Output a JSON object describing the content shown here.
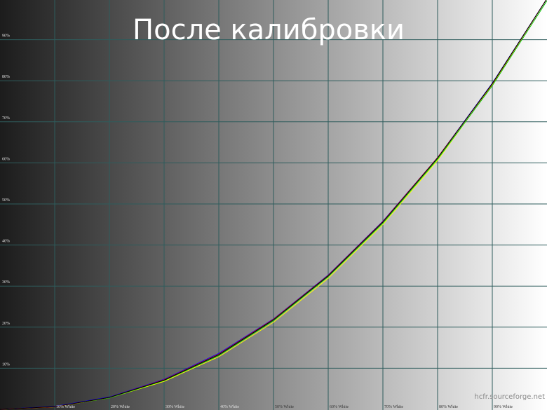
{
  "chart_data": {
    "type": "line",
    "title": "После калибровки",
    "watermark": "hcfr.sourceforge.net",
    "x": [
      0,
      10,
      20,
      30,
      40,
      50,
      60,
      70,
      80,
      90,
      100
    ],
    "xlim": [
      0,
      100
    ],
    "ylim": [
      0,
      100
    ],
    "xticks": [
      {
        "value": 10,
        "label": "10% White"
      },
      {
        "value": 20,
        "label": "20% White"
      },
      {
        "value": 30,
        "label": "30% White"
      },
      {
        "value": 40,
        "label": "40% White"
      },
      {
        "value": 50,
        "label": "50% White"
      },
      {
        "value": 60,
        "label": "60% White"
      },
      {
        "value": 70,
        "label": "70% White"
      },
      {
        "value": 80,
        "label": "80% White"
      },
      {
        "value": 90,
        "label": "90% White"
      }
    ],
    "yticks": [
      {
        "value": 10,
        "label": "10%"
      },
      {
        "value": 20,
        "label": "20%"
      },
      {
        "value": 30,
        "label": "30%"
      },
      {
        "value": 40,
        "label": "40%"
      },
      {
        "value": 50,
        "label": "50%"
      },
      {
        "value": 60,
        "label": "60%"
      },
      {
        "value": 70,
        "label": "70%"
      },
      {
        "value": 80,
        "label": "80%"
      },
      {
        "value": 90,
        "label": "90%"
      }
    ],
    "grid": true,
    "series": [
      {
        "color": "#ffff00",
        "values": [
          0,
          0.6,
          2.8,
          6.8,
          12.8,
          21.2,
          31.9,
          45.0,
          60.6,
          79.0,
          100
        ]
      },
      {
        "color": "#00c000",
        "values": [
          0,
          0.6,
          2.8,
          7.0,
          13.1,
          21.6,
          32.3,
          45.3,
          60.9,
          78.8,
          99.5
        ]
      },
      {
        "color": "#0000ff",
        "values": [
          0,
          0.7,
          3.0,
          7.3,
          13.6,
          22.0,
          32.7,
          45.8,
          61.3,
          79.4,
          100
        ]
      },
      {
        "color": "#ff0000",
        "values": [
          0,
          0.6,
          2.9,
          7.2,
          13.4,
          21.9,
          32.6,
          45.7,
          61.3,
          79.2,
          100
        ]
      },
      {
        "color": "#000000",
        "values": [
          0,
          0.63,
          2.9,
          7.1,
          13.3,
          21.8,
          32.5,
          45.6,
          61.2,
          79.3,
          100
        ]
      }
    ]
  }
}
